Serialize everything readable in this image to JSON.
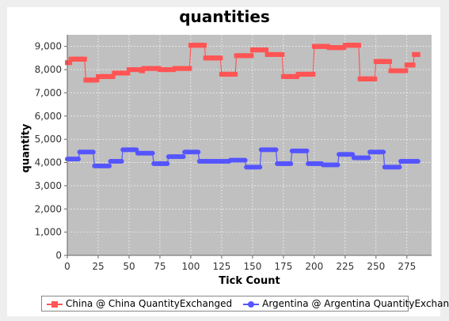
{
  "chart_data": {
    "type": "line",
    "title": "quantities",
    "xlabel": "Tick Count",
    "ylabel": "quantity",
    "xlim": [
      0,
      295
    ],
    "ylim": [
      0,
      9500
    ],
    "xticks": [
      0,
      25,
      50,
      75,
      100,
      125,
      150,
      175,
      200,
      225,
      250,
      275
    ],
    "yticks": [
      0,
      1000,
      2000,
      3000,
      4000,
      5000,
      6000,
      7000,
      8000,
      9000
    ],
    "xtick_labels": [
      "0",
      "25",
      "50",
      "75",
      "100",
      "125",
      "150",
      "175",
      "200",
      "225",
      "250",
      "275"
    ],
    "ytick_labels": [
      "0",
      "1,000",
      "2,000",
      "3,000",
      "4,000",
      "5,000",
      "6,000",
      "7,000",
      "8,000",
      "9,000"
    ],
    "grid": true,
    "legend_position": "bottom",
    "series": [
      {
        "name": "China @ China QuantityExchanged",
        "color": "#ff5555",
        "marker": "square",
        "steps": [
          [
            0,
            8300
          ],
          [
            3,
            8450
          ],
          [
            15,
            7550
          ],
          [
            25,
            7700
          ],
          [
            38,
            7850
          ],
          [
            50,
            8000
          ],
          [
            60,
            7950
          ],
          [
            62,
            8050
          ],
          [
            75,
            8000
          ],
          [
            87,
            8050
          ],
          [
            100,
            9050
          ],
          [
            112,
            8500
          ],
          [
            125,
            7800
          ],
          [
            137,
            8600
          ],
          [
            150,
            8850
          ],
          [
            162,
            8650
          ],
          [
            175,
            7700
          ],
          [
            187,
            7800
          ],
          [
            200,
            9000
          ],
          [
            212,
            8950
          ],
          [
            225,
            9050
          ],
          [
            237,
            7600
          ],
          [
            250,
            8350
          ],
          [
            262,
            7950
          ],
          [
            275,
            8200
          ],
          [
            281,
            8650
          ]
        ],
        "end_x": 284
      },
      {
        "name": "Argentina @ Argentina QuantityExchanged",
        "color": "#5555ff",
        "marker": "circle",
        "steps": [
          [
            0,
            4150
          ],
          [
            10,
            4450
          ],
          [
            22,
            3850
          ],
          [
            35,
            4050
          ],
          [
            45,
            4550
          ],
          [
            57,
            4400
          ],
          [
            70,
            3950
          ],
          [
            82,
            4250
          ],
          [
            95,
            4450
          ],
          [
            107,
            4050
          ],
          [
            120,
            4050
          ],
          [
            132,
            4100
          ],
          [
            145,
            3800
          ],
          [
            157,
            4550
          ],
          [
            170,
            3950
          ],
          [
            182,
            4500
          ],
          [
            195,
            3950
          ],
          [
            207,
            3900
          ],
          [
            220,
            4350
          ],
          [
            232,
            4200
          ],
          [
            245,
            4450
          ],
          [
            257,
            3800
          ],
          [
            270,
            4050
          ],
          [
            282,
            4050
          ]
        ],
        "end_x": 284
      }
    ]
  }
}
